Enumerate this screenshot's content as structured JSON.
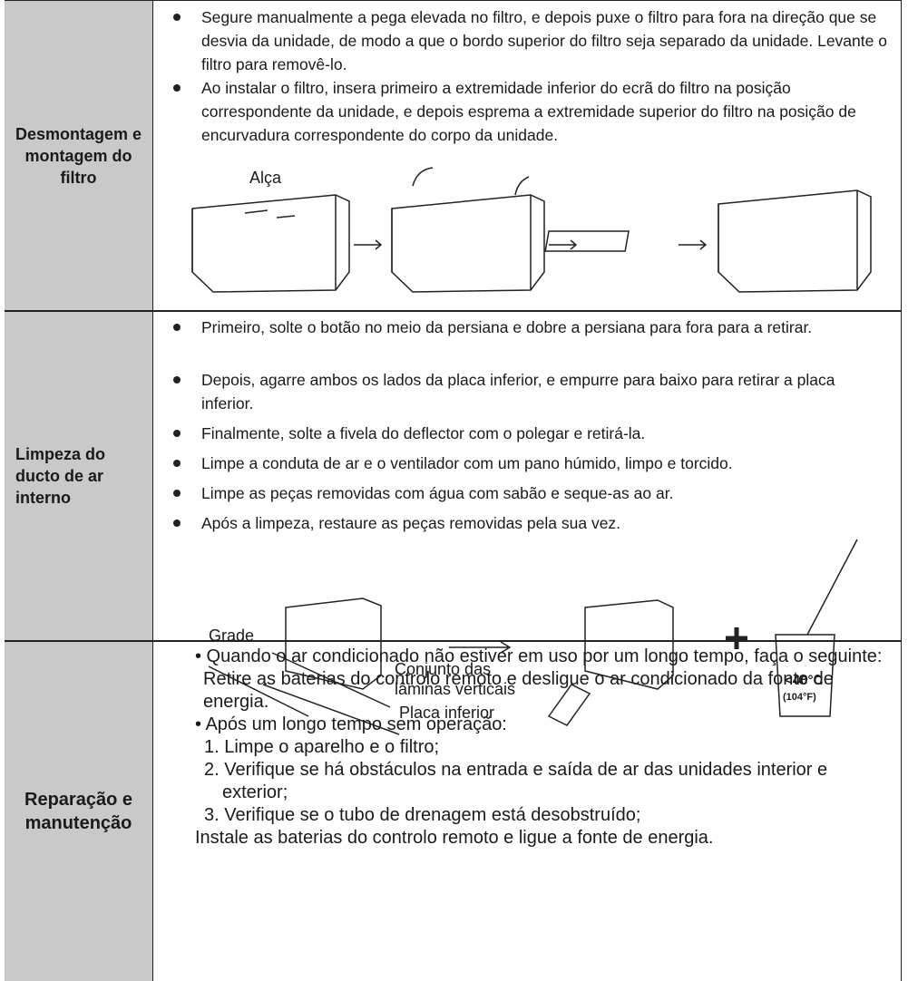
{
  "rows": [
    {
      "label": "Desmontagem e montagem do filtro",
      "bullets": [
        "Segure manualmente a pega elevada no filtro, e depois puxe o filtro para fora na direção que se desvia da unidade, de modo a que o bordo superior do filtro seja separado da unidade. Levante o filtro para removê-lo.",
        "Ao instalar o filtro, insera primeiro a extremidade inferior do ecrã do filtro na posição correspondente da unidade, e depois esprema a extremidade superior do filtro na posição de encurvadura correspondente do corpo da unidade."
      ],
      "figure_labels": [
        "Alça"
      ]
    },
    {
      "label": "Limpeza do ducto de ar interno",
      "bullets": [
        "Primeiro, solte o botão no meio da persiana e dobre a persiana para fora para a retirar.",
        "Depois, agarre ambos os lados da placa inferior, e empurre para baixo para retirar a placa inferior.",
        "Finalmente, solte a fivela do deflector com o polegar e retirá-la.",
        "Limpe a conduta de ar e o ventilador com um pano húmido, limpo e torcido.",
        "Limpe as peças removidas com água com sabão e seque-as ao ar.",
        "Após a limpeza, restaure as peças removidas pela sua vez."
      ],
      "figure_labels": [
        "Grade",
        "Conjunto das lâminas verticais",
        "Placa inferior",
        "<40°C",
        "(104°F)"
      ]
    },
    {
      "label": "Reparação e manutenção",
      "items": [
        "• Quando o ar condicionado não estiver em uso por um longo tempo, faça o seguinte: Retire as baterias do controlo remoto e desligue o ar condicionado da fonte de energia.",
        "• Após um longo tempo sem operação:",
        "1. Limpe o aparelho e o filtro;",
        "2. Verifique se há obstáculos na entrada e saída de ar das unidades interior e exterior;",
        "3. Verifique se o tubo de drenagem está desobstruído;",
        "Instale as baterias do controlo remoto e ligue a fonte de energia."
      ]
    }
  ]
}
